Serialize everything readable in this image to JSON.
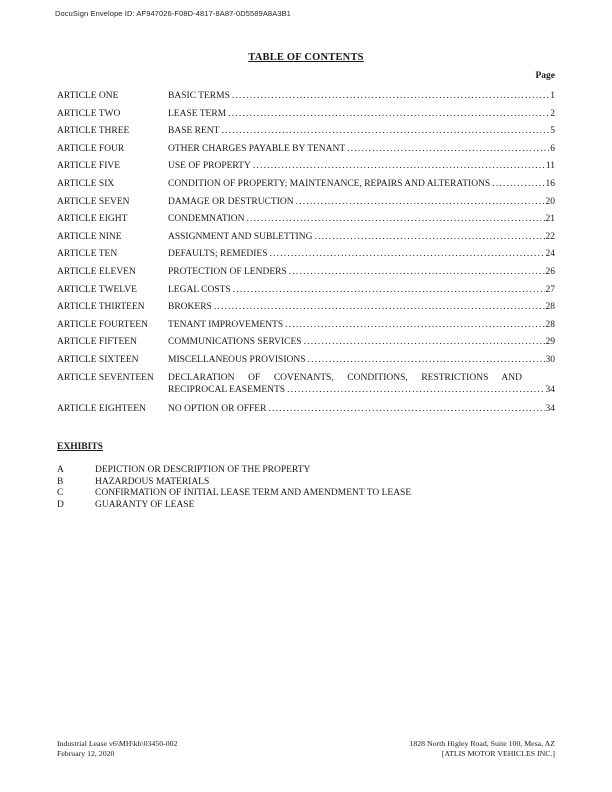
{
  "docusign": {
    "envelope_label": "DocuSign Envelope ID: AF947026-F08D-4817-8A87-0D5589A8A3B1"
  },
  "toc": {
    "title": "TABLE OF CONTENTS",
    "page_header": "Page",
    "rows": [
      {
        "article": "ARTICLE ONE",
        "title": "BASIC TERMS",
        "page": "1"
      },
      {
        "article": "ARTICLE TWO",
        "title": "LEASE TERM",
        "page": "2"
      },
      {
        "article": "ARTICLE THREE",
        "title": "BASE RENT",
        "page": "5"
      },
      {
        "article": "ARTICLE FOUR",
        "title": "OTHER CHARGES PAYABLE BY TENANT",
        "page": "6"
      },
      {
        "article": "ARTICLE FIVE",
        "title": "USE OF PROPERTY",
        "page": "11"
      },
      {
        "article": "ARTICLE SIX",
        "title": "CONDITION OF PROPERTY; MAINTENANCE, REPAIRS AND ALTERATIONS",
        "page": "16"
      },
      {
        "article": "ARTICLE SEVEN",
        "title": "DAMAGE OR DESTRUCTION",
        "page": "20"
      },
      {
        "article": "ARTICLE EIGHT",
        "title": "CONDEMNATION",
        "page": "21"
      },
      {
        "article": "ARTICLE NINE",
        "title": "ASSIGNMENT AND SUBLETTING",
        "page": "22"
      },
      {
        "article": "ARTICLE TEN",
        "title": "DEFAULTS; REMEDIES",
        "page": "24"
      },
      {
        "article": "ARTICLE ELEVEN",
        "title": "PROTECTION OF LENDERS",
        "page": "26"
      },
      {
        "article": "ARTICLE TWELVE",
        "title": "LEGAL COSTS",
        "page": "27"
      },
      {
        "article": "ARTICLE THIRTEEN",
        "title": "BROKERS",
        "page": "28"
      },
      {
        "article": "ARTICLE FOURTEEN",
        "title": "TENANT IMPROVEMENTS",
        "page": "28"
      },
      {
        "article": "ARTICLE FIFTEEN",
        "title": "COMMUNICATIONS SERVICES",
        "page": "29"
      },
      {
        "article": "ARTICLE SIXTEEN",
        "title": "MISCELLANEOUS PROVISIONS",
        "page": "30"
      },
      {
        "article": "ARTICLE SEVENTEEN",
        "title_line1": "DECLARATION OF COVENANTS, CONDITIONS, RESTRICTIONS AND",
        "title_line2": "RECIPROCAL EASEMENTS",
        "page": "34"
      },
      {
        "article": "ARTICLE EIGHTEEN",
        "title": "NO OPTION OR OFFER",
        "page": "34"
      }
    ]
  },
  "exhibits": {
    "title": "EXHIBITS",
    "items": [
      {
        "letter": "A",
        "title": "DEPICTION OR DESCRIPTION OF THE PROPERTY"
      },
      {
        "letter": "B",
        "title": "HAZARDOUS MATERIALS"
      },
      {
        "letter": "C",
        "title": "CONFIRMATION OF INITIAL LEASE TERM AND AMENDMENT TO LEASE"
      },
      {
        "letter": "D",
        "title": "GUARANTY OF LEASE"
      }
    ]
  },
  "footer": {
    "left_line1": "Industrial Lease v6\\MH\\kh\\03450-002",
    "left_line2": "February 12, 2020",
    "right_line1": "1828 North Higley Road, Suite 100, Mesa, AZ",
    "right_line2": "[ATLIS MOTOR VEHICLES INC.]"
  }
}
